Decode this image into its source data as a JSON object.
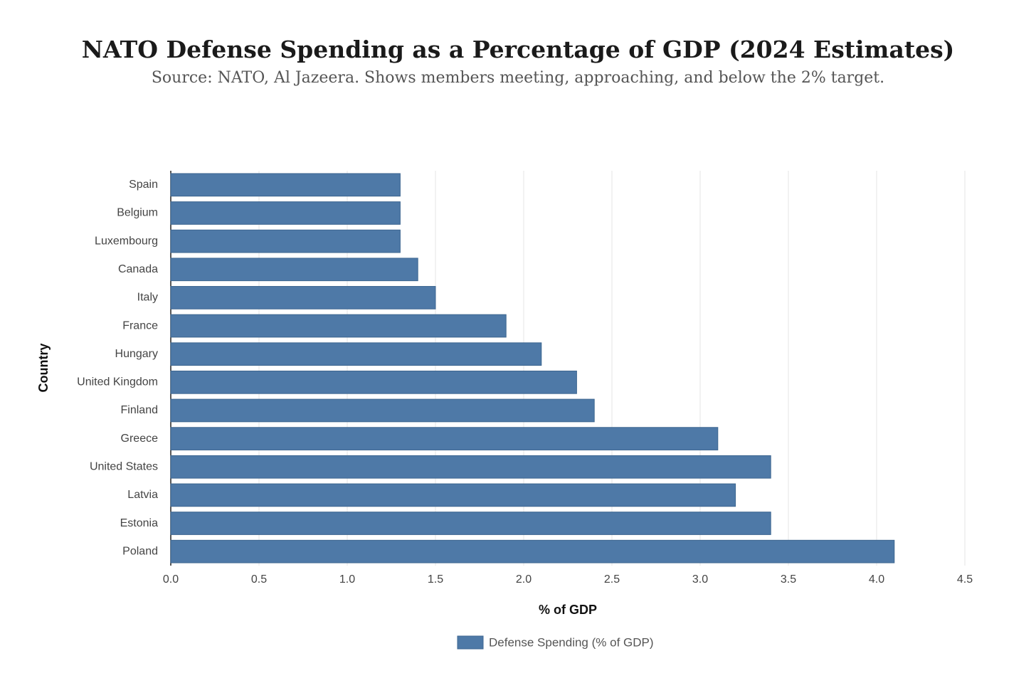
{
  "chart_data": {
    "type": "bar",
    "orientation": "horizontal",
    "title": "NATO Defense Spending as a Percentage of GDP (2024 Estimates)",
    "subtitle": "Source: NATO, Al Jazeera. Shows members meeting, approaching, and below the 2% target.",
    "xlabel": "% of GDP",
    "ylabel": "Country",
    "categories": [
      "Spain",
      "Belgium",
      "Luxembourg",
      "Canada",
      "Italy",
      "France",
      "Hungary",
      "United Kingdom",
      "Finland",
      "Greece",
      "United States",
      "Latvia",
      "Estonia",
      "Poland"
    ],
    "series": [
      {
        "name": "Defense Spending (% of GDP)",
        "color": "#4e79a7",
        "values": [
          1.3,
          1.3,
          1.3,
          1.4,
          1.5,
          1.9,
          2.1,
          2.3,
          2.4,
          3.1,
          3.4,
          3.2,
          3.4,
          4.1
        ]
      }
    ],
    "xlim": [
      0,
      4.5
    ],
    "xticks": [
      {
        "value": 0,
        "label": "0.0"
      },
      0.5,
      {
        "value": 1,
        "label": "1.0"
      },
      1.5,
      {
        "value": 2,
        "label": "2.0"
      },
      2.5,
      {
        "value": 3,
        "label": "3.0"
      },
      3.5,
      {
        "value": 4,
        "label": "4.0"
      },
      4.5
    ],
    "grid": true,
    "legend": "bottom"
  }
}
